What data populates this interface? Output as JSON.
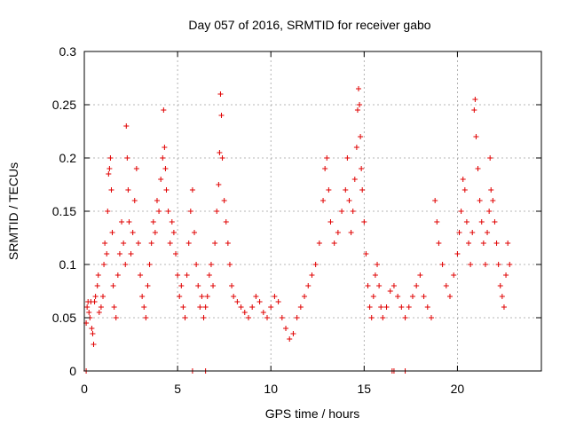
{
  "chart_data": {
    "type": "scatter",
    "title": "Day 057 of 2016, SRMTID for receiver gabo",
    "xlabel": "GPS time / hours",
    "ylabel": "SRMTID / TECUs",
    "xlim": [
      0,
      24.5
    ],
    "ylim": [
      0,
      0.3
    ],
    "x_ticks": [
      0,
      5,
      10,
      15,
      20
    ],
    "x_tick_labels": [
      "0",
      "5",
      "10",
      "15",
      "20"
    ],
    "y_ticks": [
      0,
      0.05,
      0.1,
      0.15,
      0.2,
      0.25,
      0.3
    ],
    "y_tick_labels": [
      "0",
      "0.05",
      "0.1",
      "0.15",
      "0.2",
      "0.25",
      "0.3"
    ],
    "grid": true,
    "marker": "+",
    "series": [
      {
        "name": "SRMTID",
        "color": "#e00000",
        "points": [
          [
            0.1,
            0.0
          ],
          [
            5.8,
            0.0
          ],
          [
            6.5,
            0.0
          ],
          [
            16.5,
            0.0
          ],
          [
            16.6,
            0.0
          ],
          [
            17.2,
            0.0
          ],
          [
            0.1,
            0.045
          ],
          [
            0.15,
            0.06
          ],
          [
            0.2,
            0.065
          ],
          [
            0.25,
            0.055
          ],
          [
            0.3,
            0.05
          ],
          [
            0.35,
            0.065
          ],
          [
            0.4,
            0.04
          ],
          [
            0.45,
            0.035
          ],
          [
            0.5,
            0.025
          ],
          [
            0.55,
            0.065
          ],
          [
            0.6,
            0.07
          ],
          [
            0.7,
            0.08
          ],
          [
            0.75,
            0.09
          ],
          [
            0.8,
            0.055
          ],
          [
            0.9,
            0.06
          ],
          [
            1.0,
            0.07
          ],
          [
            1.05,
            0.1
          ],
          [
            1.1,
            0.12
          ],
          [
            1.2,
            0.11
          ],
          [
            1.25,
            0.15
          ],
          [
            1.3,
            0.185
          ],
          [
            1.35,
            0.19
          ],
          [
            1.4,
            0.2
          ],
          [
            1.45,
            0.17
          ],
          [
            1.5,
            0.13
          ],
          [
            1.55,
            0.08
          ],
          [
            1.6,
            0.06
          ],
          [
            1.7,
            0.05
          ],
          [
            1.8,
            0.09
          ],
          [
            1.9,
            0.11
          ],
          [
            2.0,
            0.14
          ],
          [
            2.1,
            0.12
          ],
          [
            2.2,
            0.1
          ],
          [
            2.25,
            0.23
          ],
          [
            2.3,
            0.2
          ],
          [
            2.35,
            0.17
          ],
          [
            2.4,
            0.14
          ],
          [
            2.5,
            0.11
          ],
          [
            2.6,
            0.13
          ],
          [
            2.7,
            0.16
          ],
          [
            2.8,
            0.19
          ],
          [
            2.9,
            0.12
          ],
          [
            3.0,
            0.09
          ],
          [
            3.1,
            0.07
          ],
          [
            3.2,
            0.06
          ],
          [
            3.3,
            0.05
          ],
          [
            3.4,
            0.08
          ],
          [
            3.5,
            0.1
          ],
          [
            3.6,
            0.12
          ],
          [
            3.7,
            0.14
          ],
          [
            3.8,
            0.13
          ],
          [
            3.9,
            0.16
          ],
          [
            4.0,
            0.15
          ],
          [
            4.1,
            0.18
          ],
          [
            4.2,
            0.2
          ],
          [
            4.25,
            0.245
          ],
          [
            4.3,
            0.21
          ],
          [
            4.35,
            0.19
          ],
          [
            4.4,
            0.17
          ],
          [
            4.5,
            0.15
          ],
          [
            4.6,
            0.12
          ],
          [
            4.7,
            0.14
          ],
          [
            4.8,
            0.13
          ],
          [
            4.9,
            0.11
          ],
          [
            5.0,
            0.09
          ],
          [
            5.1,
            0.07
          ],
          [
            5.2,
            0.08
          ],
          [
            5.3,
            0.06
          ],
          [
            5.4,
            0.05
          ],
          [
            5.5,
            0.09
          ],
          [
            5.6,
            0.12
          ],
          [
            5.7,
            0.15
          ],
          [
            5.8,
            0.17
          ],
          [
            5.9,
            0.13
          ],
          [
            6.0,
            0.1
          ],
          [
            6.1,
            0.08
          ],
          [
            6.2,
            0.06
          ],
          [
            6.3,
            0.07
          ],
          [
            6.4,
            0.05
          ],
          [
            6.5,
            0.06
          ],
          [
            6.6,
            0.07
          ],
          [
            6.7,
            0.09
          ],
          [
            6.8,
            0.1
          ],
          [
            6.9,
            0.08
          ],
          [
            7.0,
            0.12
          ],
          [
            7.1,
            0.15
          ],
          [
            7.2,
            0.175
          ],
          [
            7.25,
            0.205
          ],
          [
            7.3,
            0.26
          ],
          [
            7.35,
            0.24
          ],
          [
            7.4,
            0.2
          ],
          [
            7.5,
            0.16
          ],
          [
            7.6,
            0.14
          ],
          [
            7.7,
            0.12
          ],
          [
            7.8,
            0.1
          ],
          [
            7.9,
            0.08
          ],
          [
            8.0,
            0.07
          ],
          [
            8.2,
            0.065
          ],
          [
            8.4,
            0.06
          ],
          [
            8.6,
            0.055
          ],
          [
            8.8,
            0.05
          ],
          [
            9.0,
            0.06
          ],
          [
            9.2,
            0.07
          ],
          [
            9.4,
            0.065
          ],
          [
            9.6,
            0.055
          ],
          [
            9.8,
            0.05
          ],
          [
            10.0,
            0.06
          ],
          [
            10.2,
            0.07
          ],
          [
            10.4,
            0.065
          ],
          [
            10.6,
            0.05
          ],
          [
            10.8,
            0.04
          ],
          [
            11.0,
            0.03
          ],
          [
            11.2,
            0.035
          ],
          [
            11.4,
            0.05
          ],
          [
            11.6,
            0.06
          ],
          [
            11.8,
            0.07
          ],
          [
            12.0,
            0.08
          ],
          [
            12.2,
            0.09
          ],
          [
            12.4,
            0.1
          ],
          [
            12.6,
            0.12
          ],
          [
            12.8,
            0.16
          ],
          [
            12.9,
            0.19
          ],
          [
            13.0,
            0.2
          ],
          [
            13.1,
            0.17
          ],
          [
            13.2,
            0.14
          ],
          [
            13.4,
            0.12
          ],
          [
            13.6,
            0.13
          ],
          [
            13.8,
            0.15
          ],
          [
            14.0,
            0.17
          ],
          [
            14.1,
            0.2
          ],
          [
            14.2,
            0.16
          ],
          [
            14.3,
            0.13
          ],
          [
            14.4,
            0.15
          ],
          [
            14.5,
            0.18
          ],
          [
            14.6,
            0.21
          ],
          [
            14.65,
            0.245
          ],
          [
            14.7,
            0.265
          ],
          [
            14.75,
            0.25
          ],
          [
            14.8,
            0.22
          ],
          [
            14.85,
            0.19
          ],
          [
            14.9,
            0.17
          ],
          [
            15.0,
            0.14
          ],
          [
            15.1,
            0.11
          ],
          [
            15.2,
            0.08
          ],
          [
            15.3,
            0.06
          ],
          [
            15.4,
            0.05
          ],
          [
            15.5,
            0.07
          ],
          [
            15.6,
            0.09
          ],
          [
            15.7,
            0.1
          ],
          [
            15.8,
            0.08
          ],
          [
            15.9,
            0.06
          ],
          [
            16.0,
            0.05
          ],
          [
            16.2,
            0.06
          ],
          [
            16.4,
            0.075
          ],
          [
            16.6,
            0.08
          ],
          [
            16.8,
            0.07
          ],
          [
            17.0,
            0.06
          ],
          [
            17.2,
            0.05
          ],
          [
            17.4,
            0.06
          ],
          [
            17.6,
            0.07
          ],
          [
            17.8,
            0.08
          ],
          [
            18.0,
            0.09
          ],
          [
            18.2,
            0.07
          ],
          [
            18.4,
            0.06
          ],
          [
            18.6,
            0.05
          ],
          [
            18.8,
            0.16
          ],
          [
            18.9,
            0.14
          ],
          [
            19.0,
            0.12
          ],
          [
            19.2,
            0.1
          ],
          [
            19.4,
            0.08
          ],
          [
            19.6,
            0.07
          ],
          [
            19.8,
            0.09
          ],
          [
            20.0,
            0.11
          ],
          [
            20.1,
            0.13
          ],
          [
            20.2,
            0.15
          ],
          [
            20.3,
            0.18
          ],
          [
            20.4,
            0.17
          ],
          [
            20.5,
            0.14
          ],
          [
            20.6,
            0.12
          ],
          [
            20.7,
            0.1
          ],
          [
            20.8,
            0.13
          ],
          [
            20.9,
            0.245
          ],
          [
            20.95,
            0.255
          ],
          [
            21.0,
            0.22
          ],
          [
            21.1,
            0.19
          ],
          [
            21.2,
            0.16
          ],
          [
            21.3,
            0.14
          ],
          [
            21.4,
            0.12
          ],
          [
            21.5,
            0.1
          ],
          [
            21.6,
            0.13
          ],
          [
            21.7,
            0.15
          ],
          [
            21.75,
            0.2
          ],
          [
            21.8,
            0.17
          ],
          [
            21.9,
            0.16
          ],
          [
            22.0,
            0.14
          ],
          [
            22.1,
            0.12
          ],
          [
            22.2,
            0.1
          ],
          [
            22.3,
            0.08
          ],
          [
            22.4,
            0.07
          ],
          [
            22.5,
            0.06
          ],
          [
            22.6,
            0.09
          ],
          [
            22.7,
            0.12
          ],
          [
            22.8,
            0.1
          ]
        ]
      }
    ]
  }
}
